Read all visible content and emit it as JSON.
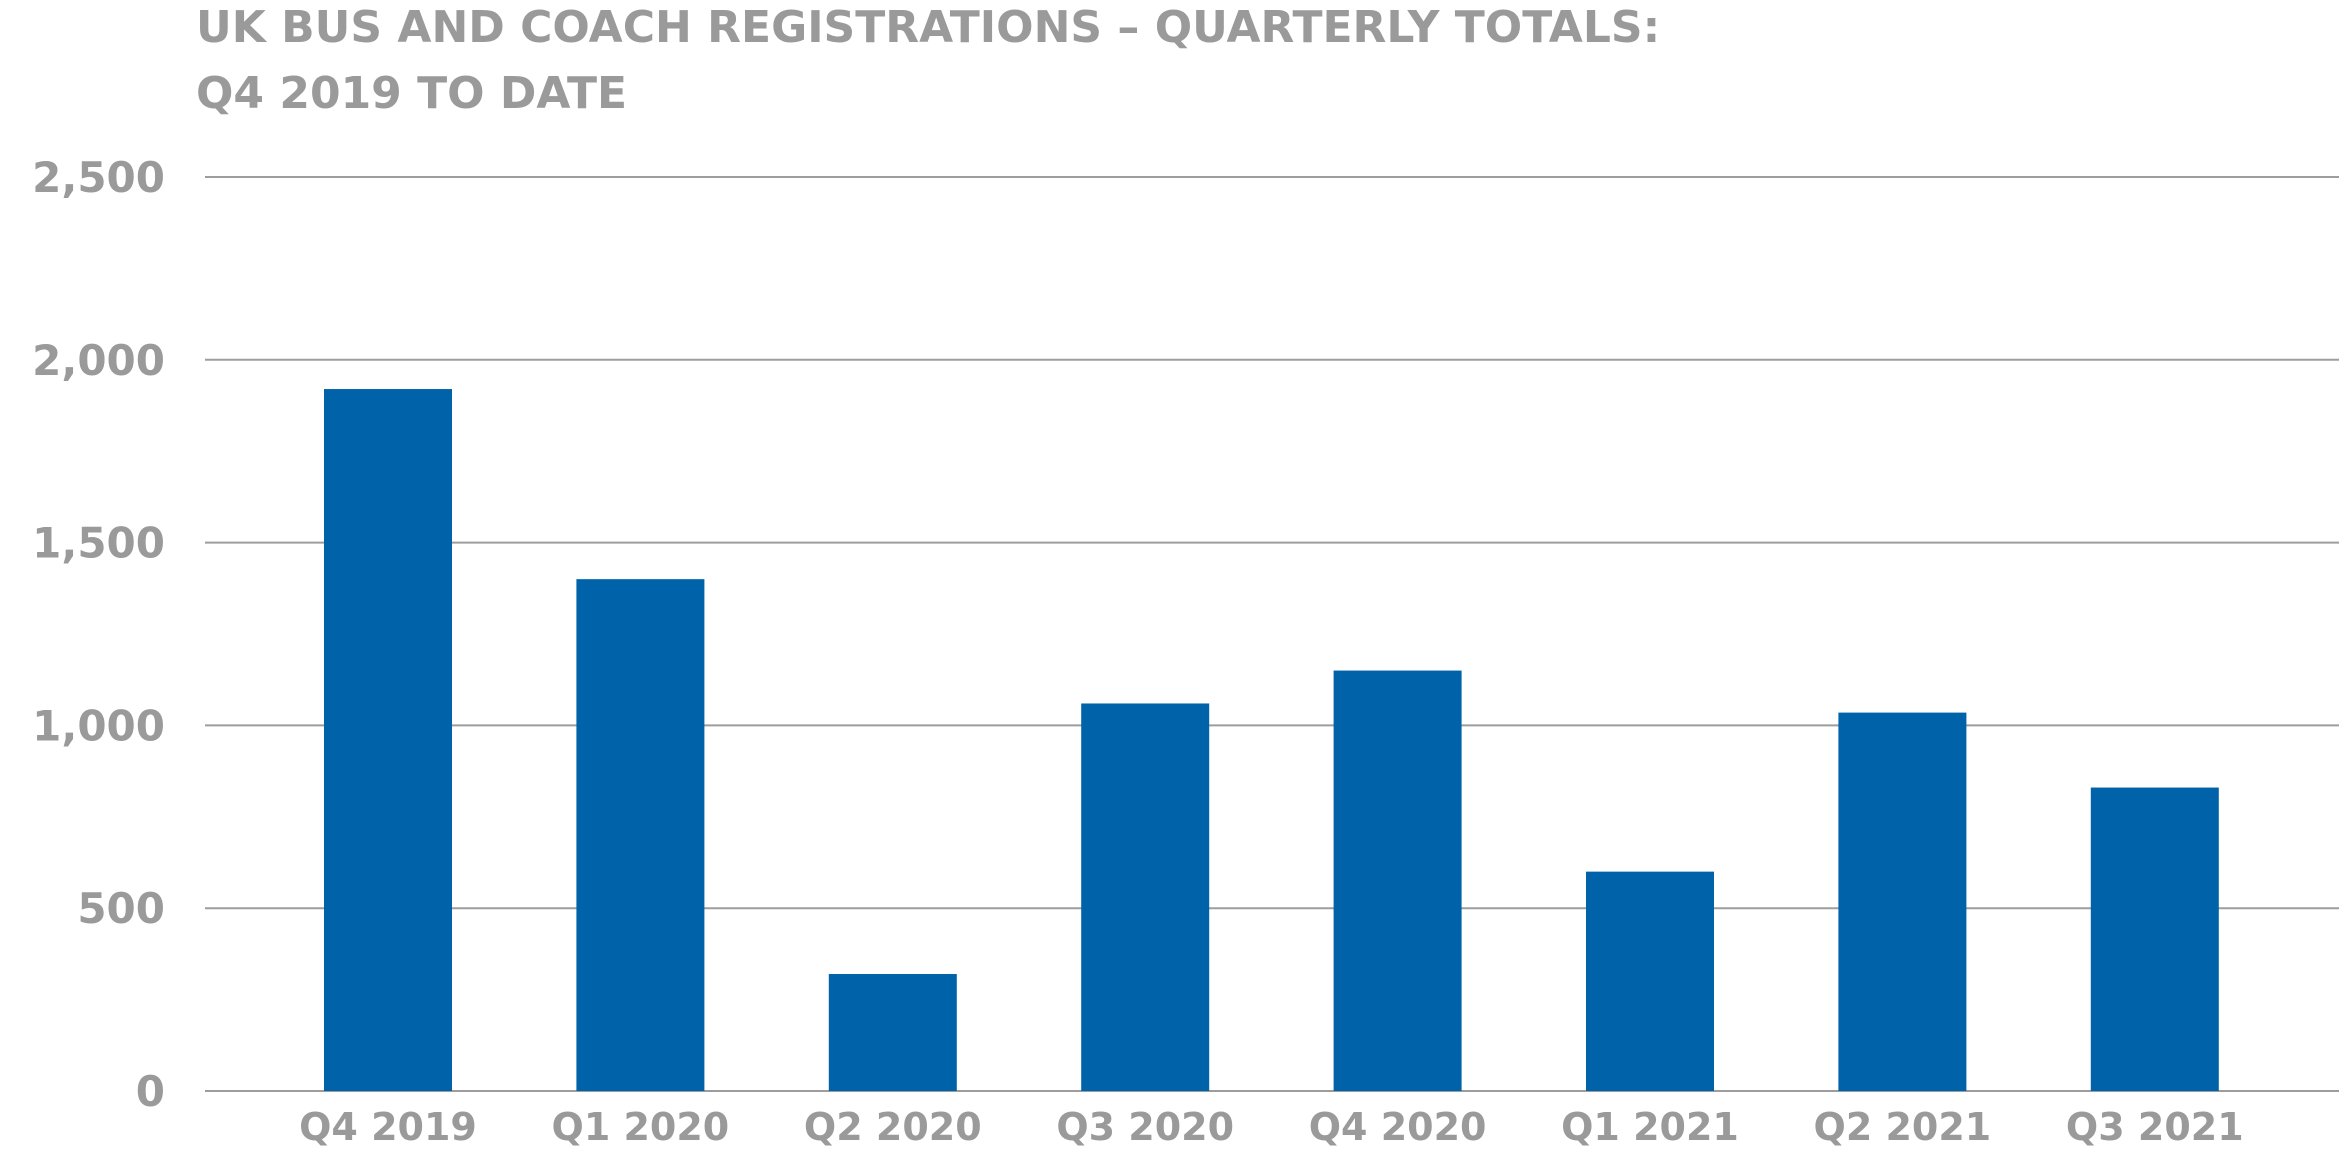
{
  "chart_data": {
    "type": "bar",
    "title": "UK BUS AND COACH REGISTRATIONS – QUARTERLY TOTALS:",
    "subtitle": "Q4 2019 TO DATE",
    "categories": [
      "Q4 2019",
      "Q1 2020",
      "Q2 2020",
      "Q3 2020",
      "Q4 2020",
      "Q1 2021",
      "Q2 2021",
      "Q3 2021"
    ],
    "values": [
      1920,
      1400,
      320,
      1060,
      1150,
      600,
      1035,
      830
    ],
    "ylim": [
      0,
      2500
    ],
    "yticks": [
      0,
      500,
      1000,
      1500,
      2000,
      2500
    ],
    "ytick_labels": [
      "0",
      "500",
      "1,000",
      "1,500",
      "2,000",
      "2,500"
    ],
    "grid": true,
    "legend": "none",
    "bar_color": "#0063a9"
  }
}
